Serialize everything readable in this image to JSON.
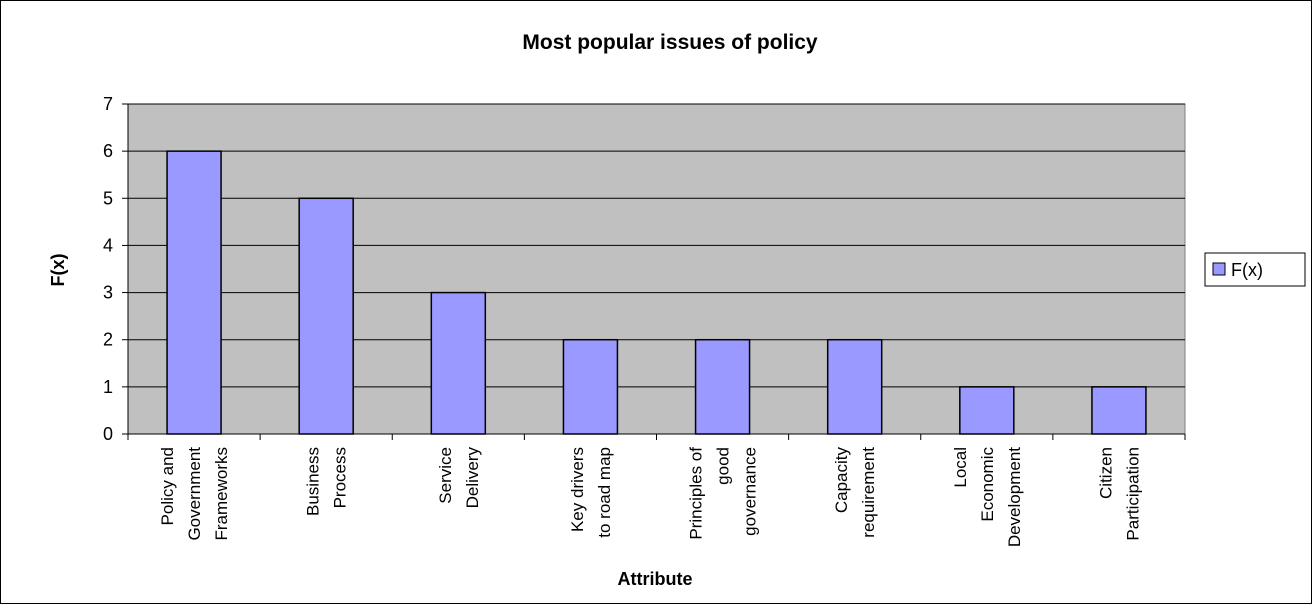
{
  "chart_data": {
    "type": "bar",
    "title": "Most popular issues of policy",
    "xlabel": "Attribute",
    "ylabel": "F(x)",
    "ylim": [
      0,
      7
    ],
    "yticks": [
      0,
      1,
      2,
      3,
      4,
      5,
      6,
      7
    ],
    "grid": true,
    "legend_position": "right",
    "categories": [
      [
        "Policy and",
        "Government",
        "Frameworks"
      ],
      [
        "Business",
        "Process"
      ],
      [
        "Service",
        "Delivery"
      ],
      [
        "Key drivers",
        "to road map"
      ],
      [
        "Principles of",
        "good",
        "governance"
      ],
      [
        "Capacity",
        "requirement"
      ],
      [
        "Local",
        "Economic",
        "Development"
      ],
      [
        "Citizen",
        "Participation"
      ]
    ],
    "series": [
      {
        "name": "F(x)",
        "values": [
          6,
          5,
          3,
          2,
          2,
          2,
          1,
          1
        ]
      }
    ],
    "colors": {
      "bar": "#9999ff",
      "plot_background": "#c0c0c0",
      "gridline": "#000000"
    }
  }
}
